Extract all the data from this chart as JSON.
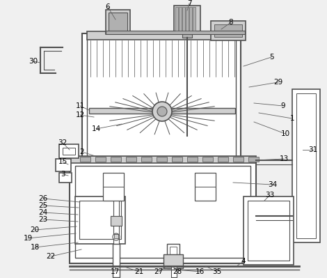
{
  "bg": "#f0f0f0",
  "lc": "#505050",
  "white": "#ffffff",
  "gray1": "#d0d0d0",
  "gray2": "#b0b0b0",
  "gray3": "#909090",
  "label_fs": 7.5
}
